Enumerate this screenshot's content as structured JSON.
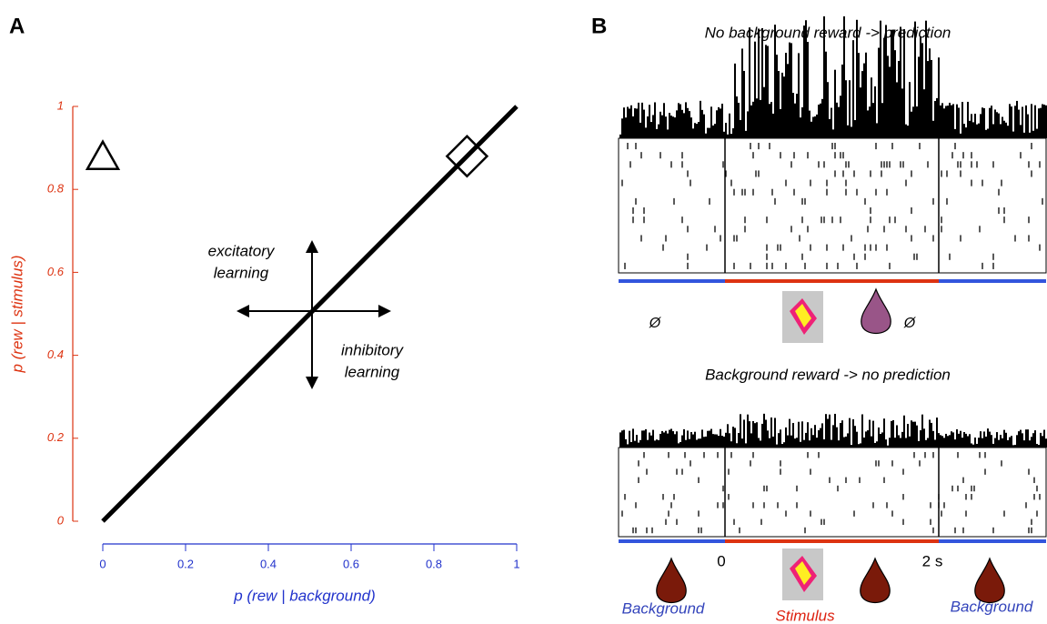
{
  "panel_labels": [
    "A",
    "B"
  ],
  "chart_data": {
    "type": "line",
    "x": [
      0,
      1
    ],
    "values": [
      0,
      1
    ],
    "color": "#000000",
    "xlabel": "p (rew | background)",
    "ylabel": "p (rew | stimulus)",
    "xlim": [
      0,
      1
    ],
    "ylim": [
      0,
      1
    ],
    "xticks": [
      0,
      0.2,
      0.4,
      0.6,
      0.8,
      1
    ],
    "yticks": [
      0,
      0.2,
      0.4,
      0.6,
      0.8,
      1
    ],
    "x_axis_color": "#2233cc",
    "y_axis_color": "#dd3311",
    "markers": [
      {
        "shape": "triangle",
        "x": 0,
        "y": 0.88
      },
      {
        "shape": "diamond",
        "x": 0.88,
        "y": 0.88
      }
    ],
    "annotations": [
      [
        "excitatory",
        "learning"
      ],
      [
        "inhibitory",
        "learning"
      ]
    ]
  },
  "panel_b": {
    "top_title": "No background reward -> prediction",
    "bottom_title": "Background reward -> no prediction",
    "null_symbols": [
      "Ø",
      "Ø"
    ],
    "time_labels": [
      "0",
      "2 s"
    ],
    "epoch_labels": [
      "Background",
      "Stimulus",
      "Background"
    ]
  }
}
